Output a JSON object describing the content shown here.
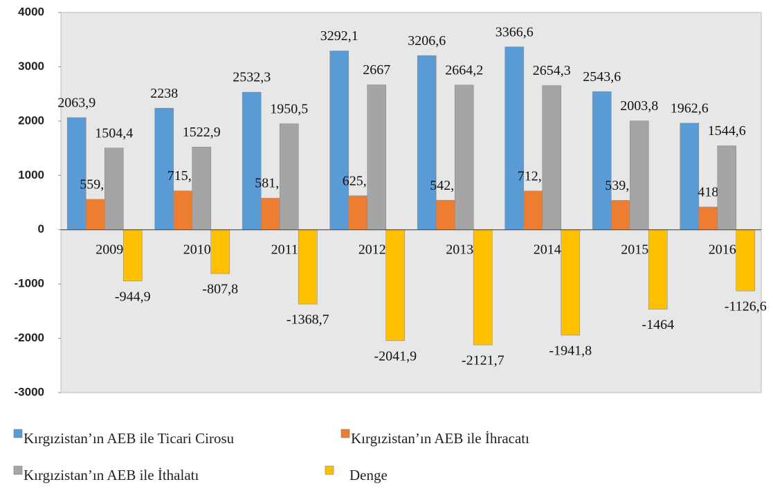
{
  "chart_data": {
    "type": "bar",
    "categories": [
      "2009",
      "2010",
      "2011",
      "2012",
      "2013",
      "2014",
      "2015",
      "2016"
    ],
    "series": [
      {
        "name": "Kırgızistan’ın AEB ile Ticari Cirosu",
        "color": "#5b9bd5",
        "values": [
          2063.9,
          2238,
          2532.3,
          3292.1,
          3206.6,
          3366.6,
          2543.6,
          1962.6
        ],
        "value_labels": [
          "2063,9",
          "2238",
          "2532,3",
          "3292,1",
          "3206,6",
          "3366,6",
          "2543,6",
          "1962,6"
        ]
      },
      {
        "name": "Kırgızistan’ın AEB ile İhracatı",
        "color": "#ed7d31",
        "values": [
          559.5,
          715.1,
          581.8,
          625.1,
          542.5,
          712.5,
          539.8,
          418
        ],
        "value_labels": [
          "559,5",
          "715,1",
          "581,8",
          "625,1",
          "542,5",
          "712,5",
          "539,8",
          "418"
        ]
      },
      {
        "name": "Kırgızistan’ın AEB ile İthalatı",
        "color": "#a5a5a5",
        "values": [
          1504.4,
          1522.9,
          1950.5,
          2667,
          2664.2,
          2654.3,
          2003.8,
          1544.6
        ],
        "value_labels": [
          "1504,4",
          "1522,9",
          "1950,5",
          "2667",
          "2664,2",
          "2654,3",
          "2003,8",
          "1544,6"
        ]
      },
      {
        "name": "Denge",
        "color": "#ffc000",
        "values": [
          -944.9,
          -807.8,
          -1368.7,
          -2041.9,
          -2121.7,
          -1941.8,
          -1464,
          -1126.6
        ],
        "value_labels": [
          "-944,9",
          "-807,8",
          "-1368,7",
          "-2041,9",
          "-2121,7",
          "-1941,8",
          "-1464",
          "-1126,6"
        ]
      }
    ],
    "ylim": [
      -3000,
      4000
    ],
    "yticks": [
      -3000,
      -2000,
      -1000,
      0,
      1000,
      2000,
      3000,
      4000
    ]
  }
}
